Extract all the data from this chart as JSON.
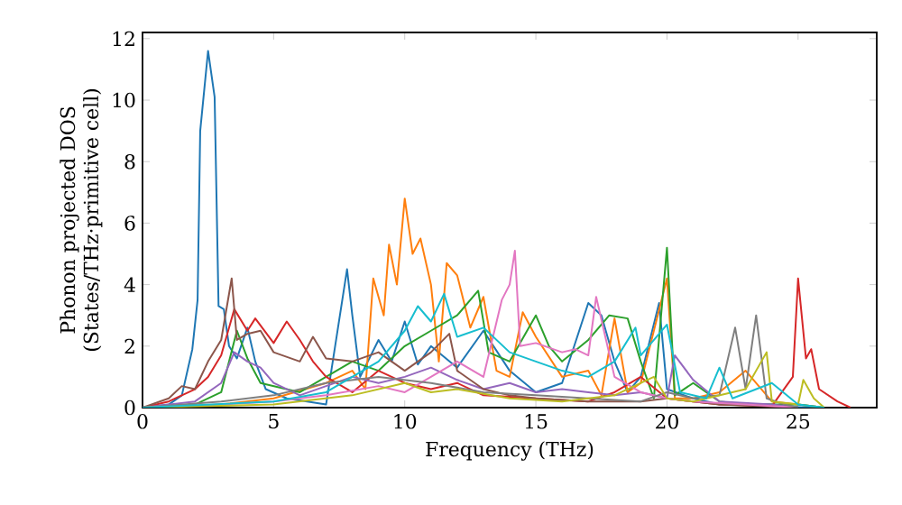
{
  "chart_data": {
    "type": "line",
    "xlabel": "Frequency (THz)",
    "ylabel": "Phonon projected DOS\n(States/THz·primitive cell)",
    "xlim": [
      0,
      28
    ],
    "ylim": [
      0,
      12.2
    ],
    "xticks": [
      0,
      5,
      10,
      15,
      20,
      25
    ],
    "yticks": [
      0,
      2,
      4,
      6,
      8,
      10,
      12
    ],
    "series": [
      {
        "color": "#1f77b4",
        "x": [
          0,
          1,
          1.5,
          1.9,
          2.1,
          2.2,
          2.5,
          2.75,
          2.9,
          3.1,
          3.3,
          3.6,
          4,
          4.3,
          4.7,
          5.5,
          7,
          7.8,
          8.0,
          8.3,
          9,
          9.5,
          10,
          10.5,
          11,
          12,
          13,
          14,
          15,
          16,
          17,
          17.5,
          18,
          18.5,
          19,
          19.7,
          20,
          21,
          22,
          24,
          25,
          26
        ],
        "values": [
          0,
          0.1,
          0.4,
          1.9,
          3.5,
          9.0,
          11.6,
          10.1,
          3.3,
          3.2,
          2.0,
          1.6,
          2.6,
          1.5,
          0.6,
          0.3,
          0.1,
          4.5,
          3.0,
          1.0,
          2.2,
          1.5,
          2.8,
          1.4,
          2.0,
          1.3,
          2.5,
          1.2,
          0.5,
          0.8,
          3.4,
          3.0,
          1.5,
          0.5,
          1.0,
          3.4,
          0.6,
          0.3,
          0.1,
          0.1,
          0.02,
          0
        ]
      },
      {
        "color": "#ff7f0e",
        "x": [
          0,
          3,
          5,
          7,
          8,
          8.5,
          8.8,
          9.2,
          9.4,
          9.7,
          10,
          10.3,
          10.6,
          11,
          11.3,
          11.6,
          12,
          12.5,
          13,
          13.5,
          14,
          14.5,
          15,
          16,
          17,
          17.5,
          18,
          18.5,
          19,
          20,
          20.3,
          21,
          22,
          23,
          24,
          25,
          26
        ],
        "values": [
          0,
          0.1,
          0.3,
          0.8,
          1.2,
          0.6,
          4.2,
          3.0,
          5.3,
          4.0,
          6.8,
          5.0,
          5.5,
          4.0,
          1.5,
          4.7,
          4.3,
          2.6,
          3.6,
          1.2,
          1.0,
          3.1,
          2.3,
          1.0,
          1.2,
          0.4,
          2.9,
          0.5,
          0.8,
          4.2,
          0.3,
          0.3,
          0.5,
          1.2,
          0.2,
          0.1,
          0
        ]
      },
      {
        "color": "#2ca02c",
        "x": [
          0,
          2,
          3,
          3.6,
          4,
          4.5,
          6,
          7,
          8,
          9,
          10,
          11,
          12,
          12.8,
          13.2,
          14,
          15,
          15.5,
          16,
          17,
          17.8,
          18.5,
          19,
          19.5,
          20,
          20.3,
          21,
          22,
          23,
          25,
          26
        ],
        "values": [
          0,
          0.1,
          0.5,
          2.5,
          1.6,
          0.8,
          0.5,
          1.0,
          1.5,
          1.2,
          2.0,
          2.5,
          3.0,
          3.8,
          1.8,
          1.5,
          3.0,
          2.0,
          1.5,
          2.2,
          3.0,
          2.9,
          1.5,
          0.3,
          5.2,
          0.4,
          0.8,
          0.2,
          0.1,
          0.1,
          0
        ]
      },
      {
        "color": "#d62728",
        "x": [
          0,
          1,
          2,
          2.5,
          3,
          3.5,
          4,
          4.3,
          5,
          5.5,
          6,
          6.5,
          7,
          8,
          9,
          10,
          11,
          12,
          13,
          15,
          17,
          18,
          19,
          20,
          22,
          24,
          24.8,
          25.0,
          25.3,
          25.5,
          25.8,
          26.5,
          27
        ],
        "values": [
          0,
          0.2,
          0.6,
          1.0,
          1.7,
          3.2,
          2.5,
          2.9,
          2.1,
          2.8,
          2.2,
          1.5,
          1.0,
          0.5,
          1.2,
          0.8,
          0.6,
          0.8,
          0.4,
          0.3,
          0.2,
          0.5,
          1.0,
          0.3,
          0.1,
          0.05,
          1.0,
          4.2,
          1.6,
          1.9,
          0.6,
          0.2,
          0
        ]
      },
      {
        "color": "#9467bd",
        "x": [
          0,
          2,
          3,
          3.5,
          4,
          4.5,
          5,
          6,
          7,
          8,
          9,
          10,
          11,
          12,
          13,
          14,
          15,
          16,
          17,
          18,
          19,
          20,
          20.3,
          21,
          22,
          24,
          25
        ],
        "values": [
          0,
          0.2,
          0.8,
          1.8,
          1.5,
          1.3,
          0.8,
          0.4,
          0.7,
          1.0,
          0.8,
          1.0,
          1.3,
          0.9,
          0.6,
          0.8,
          0.5,
          0.6,
          0.5,
          0.4,
          0.5,
          0.3,
          1.7,
          0.9,
          0.2,
          0.1,
          0
        ]
      },
      {
        "color": "#8c564b",
        "x": [
          0,
          1,
          1.5,
          2,
          2.5,
          3.0,
          3.4,
          3.6,
          4,
          4.5,
          5,
          6,
          6.5,
          7,
          8,
          9,
          10,
          11,
          11.7,
          12,
          13,
          14,
          15,
          17,
          19,
          20,
          22,
          25
        ],
        "values": [
          0,
          0.3,
          0.7,
          0.6,
          1.5,
          2.2,
          4.2,
          2.2,
          2.4,
          2.5,
          1.8,
          1.5,
          2.3,
          1.6,
          1.5,
          1.8,
          1.2,
          1.8,
          2.4,
          1.2,
          0.6,
          0.4,
          0.3,
          0.2,
          0.2,
          0.3,
          0.1,
          0
        ]
      },
      {
        "color": "#e377c2",
        "x": [
          0,
          3,
          5,
          7,
          9,
          10,
          12,
          13,
          13.7,
          14,
          14.2,
          14.4,
          15,
          16,
          16.5,
          17,
          17.3,
          18,
          19,
          20,
          21,
          23,
          25
        ],
        "values": [
          0,
          0.1,
          0.2,
          0.4,
          0.7,
          0.5,
          1.5,
          1.0,
          3.5,
          4.0,
          5.1,
          2.0,
          2.1,
          1.8,
          1.9,
          1.7,
          3.6,
          1.0,
          0.5,
          0.3,
          0.2,
          0.1,
          0
        ]
      },
      {
        "color": "#7f7f7f",
        "x": [
          0,
          3,
          5,
          7,
          9,
          11,
          13,
          15,
          17,
          19,
          20,
          21,
          22,
          22.6,
          23,
          23.4,
          23.8,
          24.5,
          25
        ],
        "values": [
          0,
          0.2,
          0.4,
          0.8,
          1.0,
          0.8,
          0.5,
          0.4,
          0.3,
          0.2,
          0.5,
          0.3,
          0.4,
          2.6,
          0.6,
          3.0,
          0.3,
          0.1,
          0
        ]
      },
      {
        "color": "#bcbd22",
        "x": [
          0,
          5,
          8,
          10,
          11,
          12,
          14,
          16,
          18,
          19.5,
          20,
          21,
          23,
          23.8,
          24,
          25,
          25.2,
          25.6,
          26
        ],
        "values": [
          0,
          0.1,
          0.4,
          0.8,
          0.5,
          0.6,
          0.3,
          0.2,
          0.4,
          1.0,
          0.3,
          0.2,
          0.6,
          1.8,
          0.2,
          0.1,
          0.9,
          0.3,
          0
        ]
      },
      {
        "color": "#17becf",
        "x": [
          0,
          5,
          7,
          8,
          9,
          10,
          10.5,
          11,
          11.5,
          12,
          13,
          14,
          15,
          16,
          17,
          18,
          18.8,
          19,
          20,
          20.5,
          21.5,
          22,
          22.5,
          24,
          25,
          26
        ],
        "values": [
          0,
          0.2,
          0.5,
          1.0,
          1.5,
          2.5,
          3.3,
          2.8,
          3.7,
          2.3,
          2.6,
          1.8,
          1.5,
          1.2,
          1.0,
          1.5,
          2.6,
          1.7,
          2.7,
          0.5,
          0.3,
          1.3,
          0.3,
          0.8,
          0.1,
          0
        ]
      }
    ]
  }
}
